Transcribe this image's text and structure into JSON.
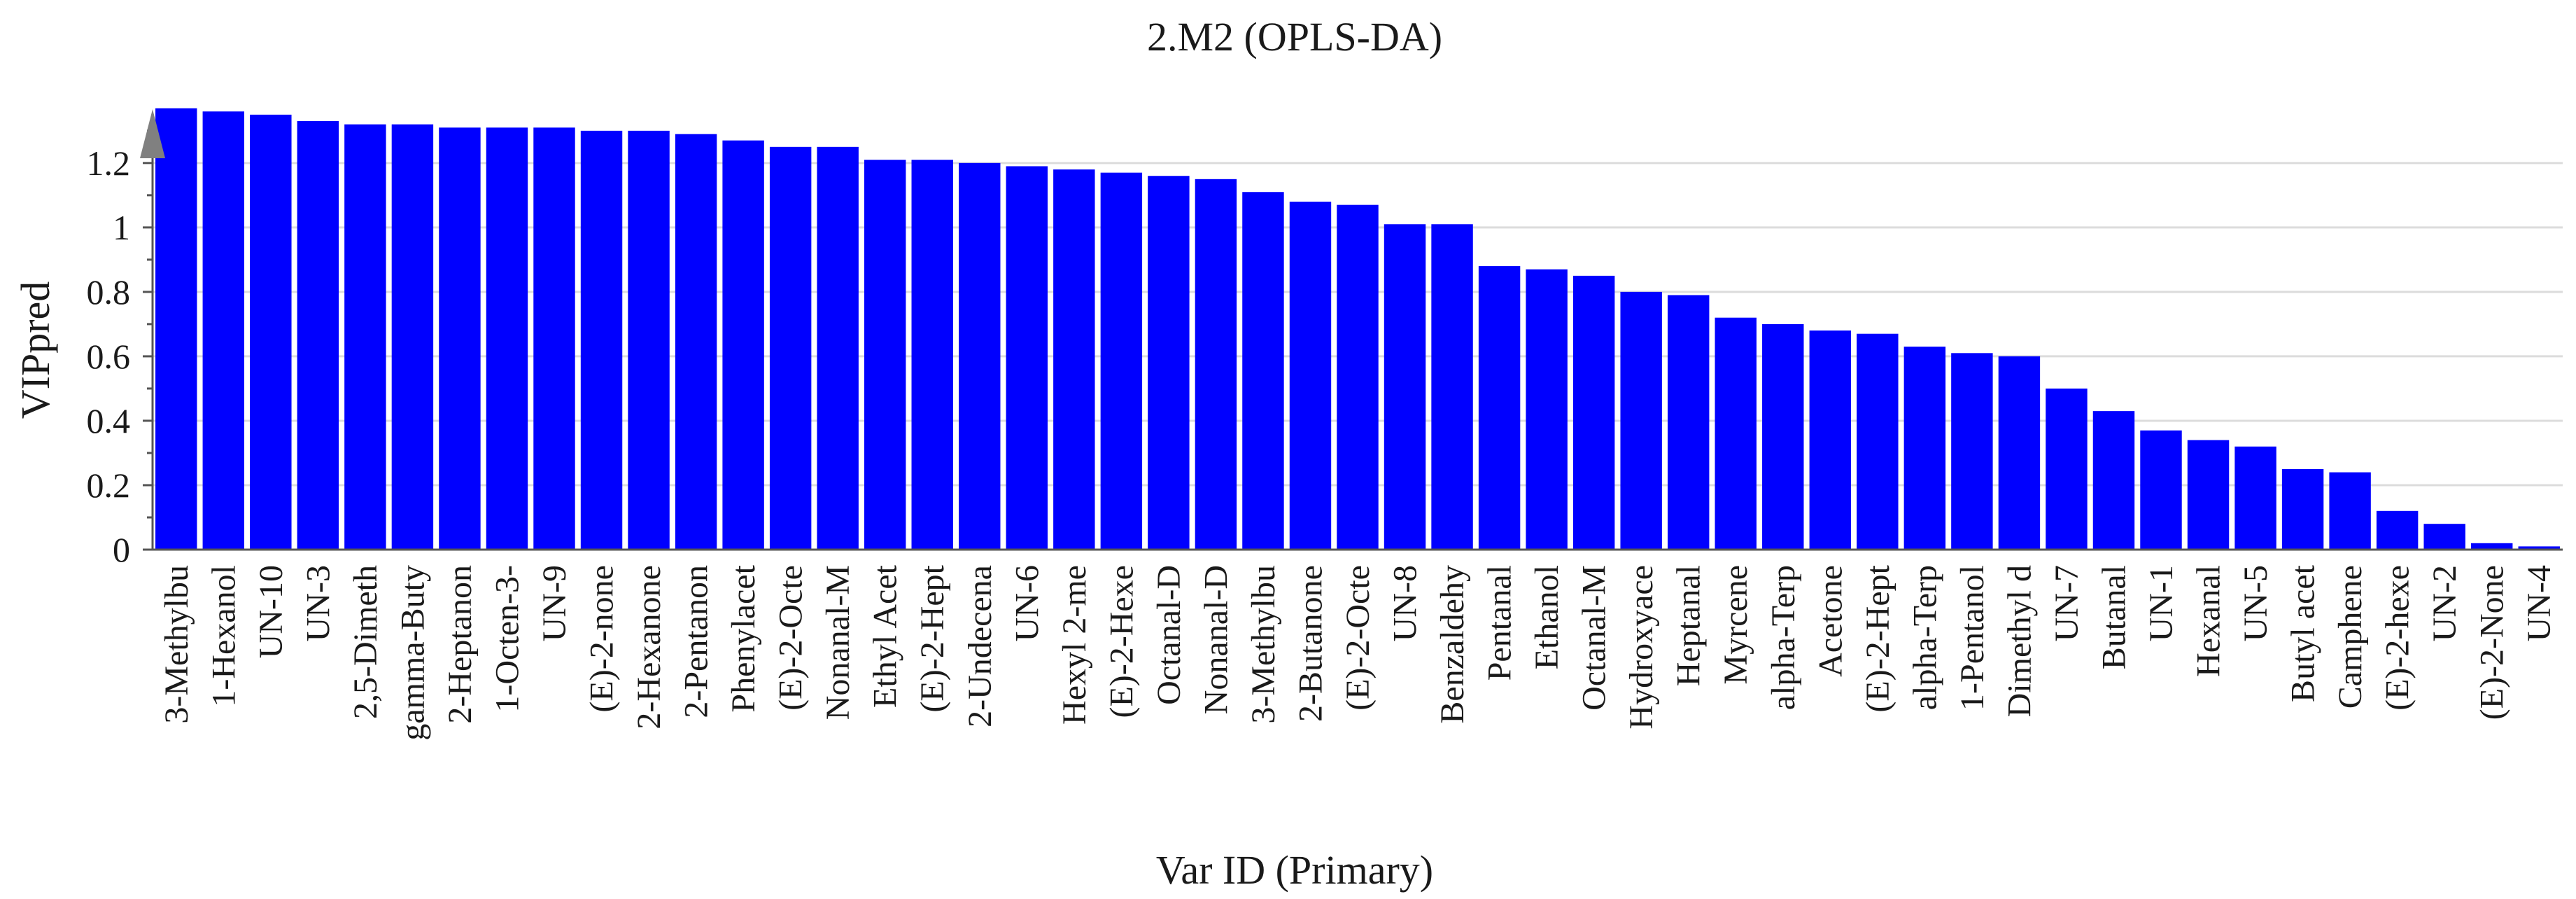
{
  "chart_data": {
    "type": "bar",
    "title": "2.M2 (OPLS-DA)",
    "xlabel": "Var ID (Primary)",
    "ylabel": "VIPpred",
    "ylim": [
      0,
      1.38
    ],
    "yticks": [
      "0",
      "0.2",
      "0.4",
      "0.6",
      "0.8",
      "1",
      "1.2"
    ],
    "grid": true,
    "legend": "none",
    "bar_color": "#0000ff",
    "categories": [
      "3-Methylbu",
      "1-Hexanol",
      "UN-10",
      "UN-3",
      "2,5-Dimeth",
      "gamma-Buty",
      "2-Heptanon",
      "1-Octen-3-",
      "UN-9",
      "(E)-2-none",
      "2-Hexanone",
      "2-Pentanon",
      "Phenylacet",
      "(E)-2-Octe",
      "Nonanal-M",
      "Ethyl Acet",
      "(E)-2-Hept",
      "2-Undecena",
      "UN-6",
      "Hexyl 2-me",
      "(E)-2-Hexe",
      "Octanal-D",
      "Nonanal-D",
      "3-Methylbu",
      "2-Butanone",
      "(E)-2-Octe",
      "UN-8",
      "Benzaldehy",
      "Pentanal",
      "Ethanol",
      "Octanal-M",
      "Hydroxyace",
      "Heptanal",
      "Myrcene",
      "alpha-Terp",
      "Acetone",
      "(E)-2-Hept",
      "alpha-Terp",
      "1-Pentanol",
      "Dimethyl d",
      "UN-7",
      "Butanal",
      "UN-1",
      "Hexanal",
      "UN-5",
      "Butyl acet",
      "Camphene",
      "(E)-2-hexe",
      "UN-2",
      "(E)-2-None",
      "UN-4"
    ],
    "values": [
      1.37,
      1.36,
      1.35,
      1.33,
      1.32,
      1.32,
      1.31,
      1.31,
      1.31,
      1.3,
      1.3,
      1.29,
      1.27,
      1.25,
      1.25,
      1.21,
      1.21,
      1.2,
      1.19,
      1.18,
      1.17,
      1.16,
      1.15,
      1.11,
      1.08,
      1.07,
      1.01,
      1.01,
      0.88,
      0.87,
      0.85,
      0.8,
      0.79,
      0.72,
      0.7,
      0.68,
      0.67,
      0.63,
      0.61,
      0.6,
      0.5,
      0.43,
      0.37,
      0.34,
      0.32,
      0.25,
      0.24,
      0.12,
      0.08,
      0.02,
      0.01
    ]
  }
}
